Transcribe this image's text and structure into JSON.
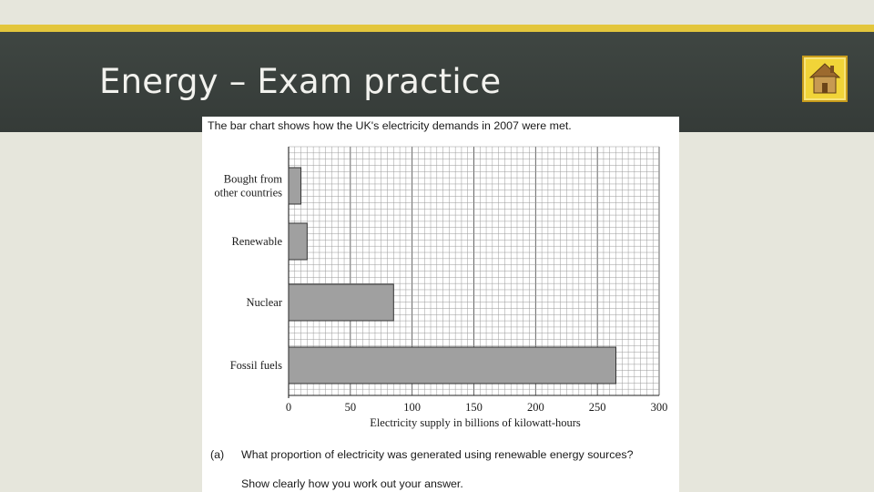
{
  "slide": {
    "title": "Energy – Exam practice",
    "home_icon": "home-icon",
    "colors": {
      "header": "#3a413e",
      "stripe": "#e3c63c",
      "background": "#e6e6dc",
      "button": "#f1d438"
    }
  },
  "worksheet": {
    "intro": "The bar chart shows how the UK's electricity demands in 2007 were met.",
    "question_label": "(a)",
    "question_text": "What proportion of electricity was generated using renewable energy sources?",
    "instruction": "Show clearly how you work out your answer."
  },
  "chart_data": {
    "type": "bar",
    "orientation": "horizontal",
    "categories": [
      "Bought from other countries",
      "Renewable",
      "Nuclear",
      "Fossil fuels"
    ],
    "values": [
      10,
      15,
      85,
      265
    ],
    "xlabel": "Electricity supply in billions of kilowatt-hours",
    "ylabel": "",
    "xlim": [
      0,
      300
    ],
    "xticks": [
      0,
      50,
      100,
      150,
      200,
      250,
      300
    ],
    "grid": true,
    "bar_color": "#a0a0a0"
  }
}
